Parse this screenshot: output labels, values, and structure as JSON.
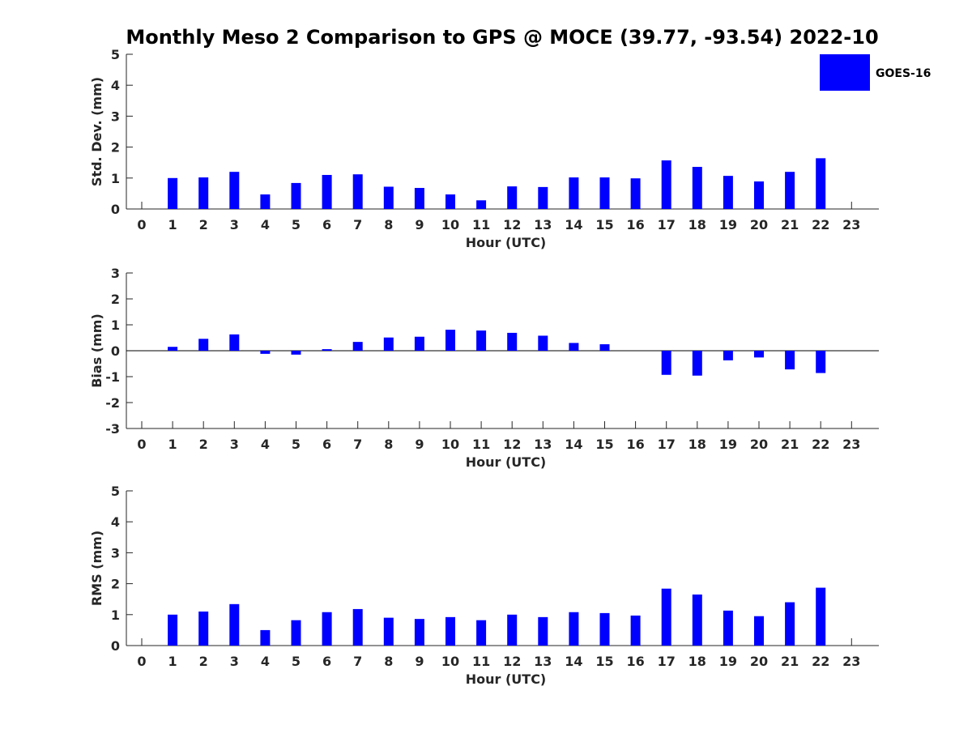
{
  "title": "Monthly Meso 2 Comparison to GPS @ MOCE (39.77, -93.54) 2022-10",
  "colors": {
    "bar": "#0000ff",
    "axis": "#262626",
    "background": "#ffffff"
  },
  "legend": {
    "label": "GOES-16",
    "placement": "top-right"
  },
  "chart_data": [
    {
      "type": "bar",
      "title": "",
      "xlabel": "Hour (UTC)",
      "ylabel": "Std. Dev. (mm)",
      "categories": [
        "0",
        "1",
        "2",
        "3",
        "4",
        "5",
        "6",
        "7",
        "8",
        "9",
        "10",
        "11",
        "12",
        "13",
        "14",
        "15",
        "16",
        "17",
        "18",
        "19",
        "20",
        "21",
        "22",
        "23"
      ],
      "series": [
        {
          "name": "GOES-16",
          "values": [
            null,
            1.0,
            1.02,
            1.2,
            0.47,
            0.84,
            1.1,
            1.12,
            0.72,
            0.68,
            0.47,
            0.28,
            0.73,
            0.71,
            1.02,
            1.02,
            0.99,
            1.57,
            1.36,
            1.07,
            0.89,
            1.2,
            1.64,
            null
          ]
        }
      ],
      "ylim": [
        0,
        5
      ],
      "yticks": [
        0,
        1,
        2,
        3,
        4,
        5
      ],
      "zero_line": false
    },
    {
      "type": "bar",
      "title": "",
      "xlabel": "Hour (UTC)",
      "ylabel": "Bias (mm)",
      "categories": [
        "0",
        "1",
        "2",
        "3",
        "4",
        "5",
        "6",
        "7",
        "8",
        "9",
        "10",
        "11",
        "12",
        "13",
        "14",
        "15",
        "16",
        "17",
        "18",
        "19",
        "20",
        "21",
        "22",
        "23"
      ],
      "series": [
        {
          "name": "GOES-16",
          "values": [
            null,
            0.15,
            0.46,
            0.63,
            -0.12,
            -0.15,
            0.06,
            0.34,
            0.51,
            0.54,
            0.81,
            0.78,
            0.69,
            0.58,
            0.3,
            0.25,
            null,
            -0.93,
            -0.96,
            -0.37,
            -0.26,
            -0.72,
            -0.86,
            null
          ]
        }
      ],
      "ylim": [
        -3,
        3
      ],
      "yticks": [
        -3,
        -2,
        -1,
        0,
        1,
        2,
        3
      ],
      "zero_line": true
    },
    {
      "type": "bar",
      "title": "",
      "xlabel": "Hour (UTC)",
      "ylabel": "RMS (mm)",
      "categories": [
        "0",
        "1",
        "2",
        "3",
        "4",
        "5",
        "6",
        "7",
        "8",
        "9",
        "10",
        "11",
        "12",
        "13",
        "14",
        "15",
        "16",
        "17",
        "18",
        "19",
        "20",
        "21",
        "22",
        "23"
      ],
      "series": [
        {
          "name": "GOES-16",
          "values": [
            null,
            1.0,
            1.1,
            1.34,
            0.5,
            0.82,
            1.08,
            1.18,
            0.9,
            0.86,
            0.92,
            0.82,
            1.0,
            0.92,
            1.08,
            1.05,
            0.97,
            1.84,
            1.65,
            1.13,
            0.95,
            1.4,
            1.87,
            null
          ]
        }
      ],
      "ylim": [
        0,
        5
      ],
      "yticks": [
        0,
        1,
        2,
        3,
        4,
        5
      ],
      "zero_line": false
    }
  ]
}
